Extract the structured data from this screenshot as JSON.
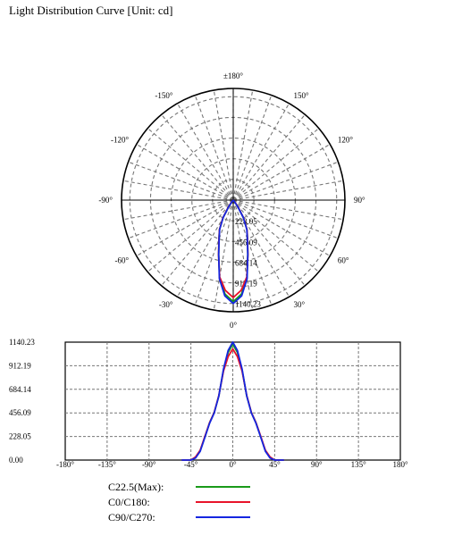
{
  "title": "Light Distribution Curve [Unit: cd]",
  "colors": {
    "c22_5": "#1a9a1a",
    "c0_180": "#e8132a",
    "c90_270": "#1526e0",
    "grid": "#777777"
  },
  "chart_data": [
    {
      "type": "polar",
      "angle_labels": [
        "±180°",
        "150°",
        "120°",
        "90°",
        "60°",
        "30°",
        "0°",
        "-30°",
        "-60°",
        "-90°",
        "-120°",
        "-150°"
      ],
      "radial_labels": [
        "228.05",
        "456.09",
        "684.14",
        "912.19",
        "1140.23"
      ],
      "rmax": 1140.23,
      "theta": [
        0,
        5,
        10,
        15,
        20,
        25,
        30,
        35,
        40,
        45,
        50,
        55
      ],
      "series": [
        {
          "name": "C22.5(Max):",
          "values": [
            1120,
            1040,
            870,
            620,
            460,
            360,
            225,
            90,
            25,
            0,
            0,
            0
          ]
        },
        {
          "name": "C0/C180:",
          "values": [
            1075,
            1000,
            860,
            625,
            460,
            360,
            230,
            95,
            30,
            0,
            0,
            0
          ]
        },
        {
          "name": "C90/C270:",
          "values": [
            1140,
            1060,
            880,
            620,
            455,
            355,
            220,
            85,
            20,
            0,
            0,
            0
          ]
        }
      ]
    },
    {
      "type": "line",
      "x_ticks": [
        "-180°",
        "-135°",
        "-90°",
        "-45°",
        "0°",
        "45°",
        "90°",
        "135°",
        "180°"
      ],
      "y_ticks": [
        "0.00",
        "228.05",
        "456.09",
        "684.14",
        "912.19",
        "1140.23"
      ],
      "xlim": [
        -180,
        180
      ],
      "ylim": [
        0,
        1140.23
      ],
      "grid": true
    }
  ],
  "legend": [
    {
      "label": "C22.5(Max):"
    },
    {
      "label": "C0/C180:"
    },
    {
      "label": "C90/C270:"
    }
  ]
}
